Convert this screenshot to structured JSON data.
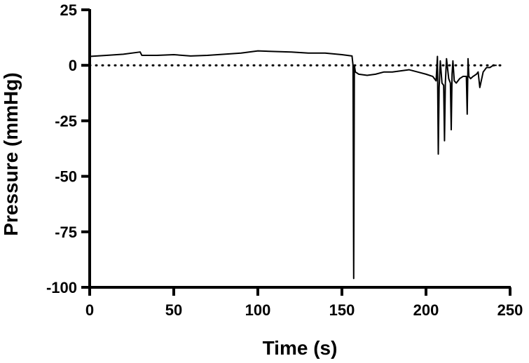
{
  "chart_data": {
    "type": "line",
    "title": "",
    "xlabel": "Time (s)",
    "ylabel": "Pressure (mmHg)",
    "xlim": [
      0,
      250
    ],
    "ylim": [
      -100,
      25
    ],
    "xticks": [
      0,
      50,
      100,
      150,
      200,
      250
    ],
    "yticks": [
      25,
      0,
      -25,
      -50,
      -75,
      -100
    ],
    "grid": false,
    "legend": "none",
    "reference_line": {
      "y": 0,
      "style": "dotted"
    },
    "series": [
      {
        "color": "#000000",
        "x": [
          0,
          10,
          20,
          30,
          31,
          40,
          50,
          60,
          70,
          80,
          90,
          100,
          110,
          120,
          130,
          140,
          150,
          156,
          156.6,
          157,
          157.4,
          158,
          160,
          165,
          170,
          175,
          180,
          185,
          190,
          195,
          200,
          204,
          206,
          206.8,
          207.3,
          207.8,
          208.5,
          209.5,
          210.5,
          211,
          211.5,
          212.2,
          213.5,
          214.5,
          215,
          215.5,
          216,
          216.8,
          218,
          220,
          222,
          224,
          224.5,
          225,
          225.5,
          226.5,
          228,
          230,
          231,
          232,
          234,
          236,
          238,
          240,
          242
        ],
        "y": [
          4,
          4.5,
          5,
          6,
          4.5,
          4.5,
          4.8,
          4.2,
          4.5,
          5,
          5.5,
          6.5,
          6.2,
          6,
          5.5,
          5.5,
          4.8,
          4.2,
          0,
          -96,
          0,
          -3,
          -4,
          -4.5,
          -4,
          -3,
          -3,
          -2.5,
          -2,
          -3,
          -4,
          -5,
          -7,
          4,
          -40,
          -10,
          2,
          -8,
          -9,
          -34,
          -8,
          3,
          -6,
          -8,
          -29,
          -4,
          2,
          -7,
          -8,
          -6,
          -5,
          -5,
          -22,
          3,
          -5,
          -6,
          -5,
          -4,
          -3,
          -10,
          -3,
          -1,
          -1,
          0,
          0
        ]
      }
    ]
  }
}
